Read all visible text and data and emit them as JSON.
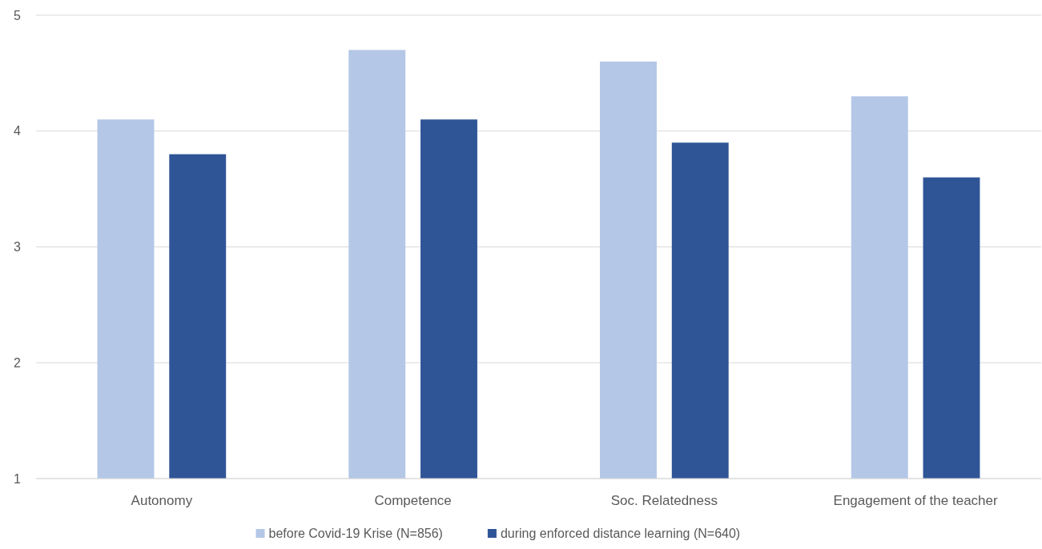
{
  "chart_data": {
    "type": "bar",
    "categories": [
      "Autonomy",
      "Competence",
      "Soc. Relatedness",
      "Engagement of the teacher"
    ],
    "series": [
      {
        "name": "before Covid-19 Krise (N=856)",
        "color": "#b4c7e7",
        "values": [
          4.1,
          4.7,
          4.6,
          4.3
        ]
      },
      {
        "name": "during enforced distance learning (N=640)",
        "color": "#2f5597",
        "values": [
          3.8,
          4.1,
          3.9,
          3.6
        ]
      }
    ],
    "ylim": [
      1,
      5
    ],
    "yticks": [
      1,
      2,
      3,
      4,
      5
    ],
    "grid": "y",
    "legend": "bottom"
  }
}
